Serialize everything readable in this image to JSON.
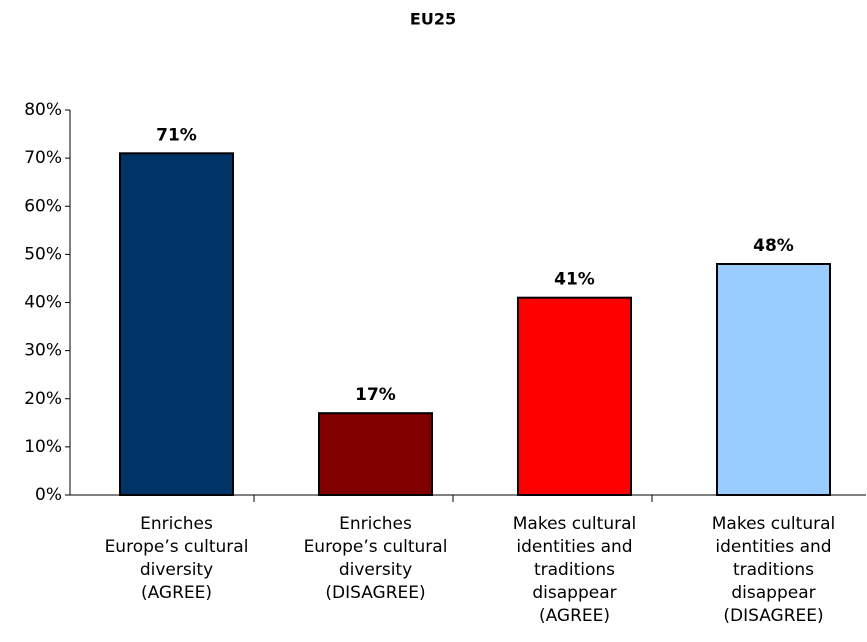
{
  "chart_data": {
    "type": "bar",
    "title": "EU25",
    "categories": [
      [
        "Enriches",
        "Europe’s cultural",
        "diversity",
        "(AGREE)"
      ],
      [
        "Enriches",
        "Europe’s cultural",
        "diversity",
        "(DISAGREE)"
      ],
      [
        "Makes cultural",
        "identities and",
        "traditions",
        "disappear",
        "(AGREE)"
      ],
      [
        "Makes cultural",
        "identities and",
        "traditions",
        "disappear",
        "(DISAGREE)"
      ]
    ],
    "values": [
      71,
      17,
      41,
      48
    ],
    "value_labels": [
      "71%",
      "17%",
      "41%",
      "48%"
    ],
    "colors": [
      "#003366",
      "#800000",
      "#ff0000",
      "#99ccff"
    ],
    "ylim": [
      0,
      80
    ],
    "yticks": [
      {
        "value": 0,
        "label": "0%"
      },
      {
        "value": 10,
        "label": "10%"
      },
      {
        "value": 20,
        "label": "20%"
      },
      {
        "value": 30,
        "label": "30%"
      },
      {
        "value": 40,
        "label": "40%"
      },
      {
        "value": 50,
        "label": "50%"
      },
      {
        "value": 60,
        "label": "60%"
      },
      {
        "value": 70,
        "label": "70%"
      },
      {
        "value": 80,
        "label": "80%"
      }
    ],
    "grid": false
  }
}
